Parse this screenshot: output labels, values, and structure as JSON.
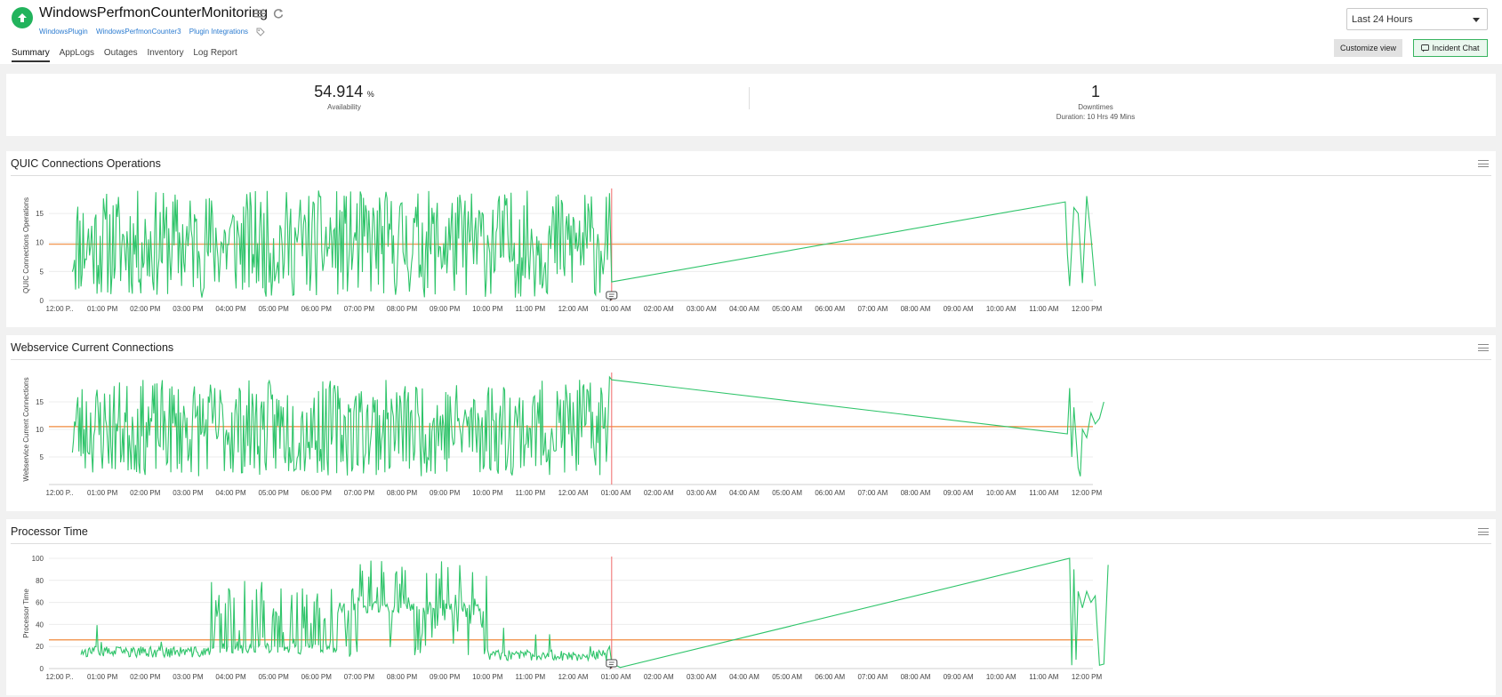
{
  "header": {
    "title": "WindowsPerfmonCounterMonitoring",
    "status_color": "#22b35c",
    "breadcrumbs": [
      "WindowsPlugin",
      "WindowsPerfmonCounter3",
      "Plugin Integrations"
    ],
    "tabs": [
      "Summary",
      "AppLogs",
      "Outages",
      "Inventory",
      "Log Report"
    ],
    "active_tab": "Summary",
    "time_range": "Last 24 Hours",
    "customize_label": "Customize view",
    "incident_chat_label": "Incident Chat"
  },
  "summary": {
    "availability_value": "54.914",
    "availability_unit": "%",
    "availability_label": "Availability",
    "downtimes_value": "1",
    "downtimes_label": "Downtimes",
    "downtimes_duration": "Duration: 10 Hrs 49 Mins"
  },
  "colors": {
    "series": "#2fc46a",
    "threshold": "#f08a3c",
    "marker": "#f06a6a",
    "accent": "#38b45f"
  },
  "x_tick_labels": [
    "12:00 P..",
    "01:00 PM",
    "02:00 PM",
    "03:00 PM",
    "04:00 PM",
    "05:00 PM",
    "06:00 PM",
    "07:00 PM",
    "08:00 PM",
    "09:00 PM",
    "10:00 PM",
    "11:00 PM",
    "12:00 AM",
    "01:00 AM",
    "02:00 AM",
    "03:00 AM",
    "04:00 AM",
    "05:00 AM",
    "06:00 AM",
    "07:00 AM",
    "08:00 AM",
    "09:00 AM",
    "10:00 AM",
    "11:00 AM",
    "12:00 PM"
  ],
  "chart_data": [
    {
      "type": "line",
      "title": "QUIC Connections Operations",
      "ylabel": "QUIC Connections Operations",
      "yticks": [
        0,
        5,
        10,
        15
      ],
      "ylim": [
        0,
        19
      ],
      "x_hours_range": [
        0,
        24
      ],
      "threshold": 9.7,
      "marker_hour": 12.9,
      "dense_range": [
        0.3,
        12.8
      ],
      "dense_low": 0.5,
      "dense_high": 19,
      "dense_shape": "uniform",
      "seed": 11,
      "tail": [
        [
          12.8,
          7
        ],
        [
          12.85,
          18.5
        ],
        [
          12.9,
          3.2
        ],
        [
          23.5,
          17
        ],
        [
          23.55,
          8
        ],
        [
          23.6,
          2.5
        ],
        [
          23.7,
          16
        ],
        [
          23.8,
          15
        ],
        [
          23.9,
          3
        ],
        [
          24.0,
          18
        ],
        [
          24.1,
          11
        ],
        [
          24.2,
          2.5
        ]
      ],
      "comment_icon_hour": 12.9
    },
    {
      "type": "line",
      "title": "Webservice Current Connections",
      "ylabel": "Webservice Current Connections",
      "yticks": [
        5,
        10,
        15
      ],
      "ylim": [
        0,
        20
      ],
      "x_hours_range": [
        0,
        24
      ],
      "threshold": 10.5,
      "marker_hour": 12.9,
      "dense_range": [
        0.3,
        12.8
      ],
      "dense_low": 1.5,
      "dense_high": 19,
      "dense_shape": "uniform",
      "seed": 23,
      "tail": [
        [
          12.8,
          8
        ],
        [
          12.85,
          19.5
        ],
        [
          12.9,
          19
        ],
        [
          23.55,
          9.2
        ],
        [
          23.6,
          17.5
        ],
        [
          23.65,
          5
        ],
        [
          23.7,
          14
        ],
        [
          23.8,
          3
        ],
        [
          23.85,
          1.5
        ],
        [
          23.9,
          10
        ],
        [
          24.0,
          8.5
        ],
        [
          24.1,
          13
        ],
        [
          24.2,
          11
        ],
        [
          24.3,
          12
        ],
        [
          24.4,
          15
        ]
      ],
      "comment_icon_hour": null
    },
    {
      "type": "line",
      "title": "Processor Time",
      "ylabel": "Processor Time",
      "yticks": [
        0,
        20,
        40,
        60,
        80,
        100
      ],
      "ylim": [
        0,
        100
      ],
      "x_hours_range": [
        0,
        24
      ],
      "threshold": 26,
      "marker_hour": 12.9,
      "dense_range": [
        0.5,
        12.8
      ],
      "dense_low": 0,
      "dense_high": 100,
      "dense_shape": "processor",
      "seed": 37,
      "tail": [
        [
          12.8,
          16
        ],
        [
          12.85,
          20
        ],
        [
          12.9,
          5
        ],
        [
          13.1,
          1
        ],
        [
          23.6,
          100
        ],
        [
          23.65,
          3
        ],
        [
          23.7,
          90
        ],
        [
          23.75,
          8
        ],
        [
          23.8,
          70
        ],
        [
          23.9,
          55
        ],
        [
          24.0,
          70
        ],
        [
          24.1,
          60
        ],
        [
          24.2,
          66
        ],
        [
          24.3,
          3
        ],
        [
          24.4,
          4
        ],
        [
          24.5,
          94
        ]
      ],
      "comment_icon_hour": 12.9
    }
  ]
}
